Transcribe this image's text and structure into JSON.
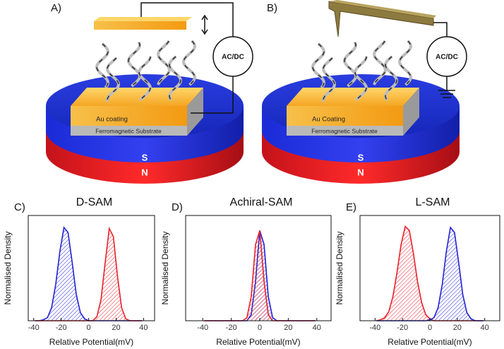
{
  "diagrams": [
    {
      "label": "A)",
      "meter": "AC/DC",
      "coating": "Au coating",
      "substrate": "Ferromagnetic Substrate",
      "top_pole": "S",
      "bottom_pole": "N"
    },
    {
      "label": "B)",
      "meter": "AC/DC",
      "coating": "Au Coating",
      "substrate": "Ferromagnetic Substrate",
      "top_pole": "S",
      "bottom_pole": "N"
    }
  ],
  "chart_data": [
    {
      "type": "area",
      "panel_label": "C)",
      "title": "D-SAM",
      "xlabel": "Relative Potential(mV)",
      "ylabel": "Normalised Density",
      "x": [
        -39,
        -36,
        -33,
        -30,
        -27,
        -24,
        -21,
        -18,
        -15,
        -12,
        -9,
        -6,
        -3,
        0,
        3,
        6,
        9,
        12,
        15,
        18,
        21,
        24,
        27,
        30,
        33,
        36,
        39
      ],
      "xlim": [
        -44,
        48
      ],
      "ylim": [
        0,
        1.05
      ],
      "xticks": [
        -40,
        -20,
        0,
        20,
        40
      ],
      "series": [
        {
          "color": "#2222d4",
          "values": [
            0,
            0,
            0.01,
            0.03,
            0.13,
            0.36,
            0.69,
            0.93,
            0.88,
            0.58,
            0.26,
            0.08,
            0.02,
            0,
            0,
            0,
            0,
            0,
            0,
            0,
            0,
            0,
            0,
            0,
            0,
            0,
            0
          ]
        },
        {
          "color": "#e8202a",
          "values": [
            0,
            0,
            0,
            0,
            0,
            0,
            0,
            0,
            0,
            0,
            0,
            0,
            0,
            0,
            0,
            0.04,
            0.21,
            0.58,
            0.92,
            0.84,
            0.44,
            0.13,
            0.02,
            0,
            0,
            0,
            0
          ]
        }
      ]
    },
    {
      "type": "area",
      "panel_label": "D)",
      "title": "Achiral-SAM",
      "xlabel": "Relative Potential(mV)",
      "ylabel": "Normalised Density",
      "x": [
        -39,
        -36,
        -33,
        -30,
        -27,
        -24,
        -21,
        -18,
        -15,
        -12,
        -9,
        -6,
        -3,
        0,
        3,
        6,
        9,
        12,
        15,
        18,
        21,
        24,
        27,
        30,
        33,
        36,
        39
      ],
      "xlim": [
        -52,
        50
      ],
      "ylim": [
        0,
        1.05
      ],
      "xticks": [
        -40,
        -20,
        0,
        20,
        40
      ],
      "series": [
        {
          "color": "#2222d4",
          "values": [
            0,
            0,
            0,
            0,
            0,
            0,
            0,
            0,
            0,
            0,
            0,
            0.06,
            0.39,
            0.9,
            0.76,
            0.24,
            0.03,
            0,
            0,
            0,
            0,
            0,
            0,
            0,
            0,
            0,
            0
          ]
        },
        {
          "color": "#e8202a",
          "values": [
            0,
            0,
            0,
            0,
            0,
            0,
            0,
            0,
            0,
            0,
            0.03,
            0.24,
            0.76,
            0.9,
            0.39,
            0.06,
            0,
            0,
            0,
            0,
            0,
            0,
            0,
            0,
            0,
            0,
            0
          ]
        }
      ]
    },
    {
      "type": "area",
      "panel_label": "E)",
      "title": "L-SAM",
      "xlabel": "Relative Potential(mV)",
      "ylabel": "Normalised Density",
      "x": [
        -39,
        -36,
        -33,
        -30,
        -27,
        -24,
        -21,
        -18,
        -15,
        -12,
        -9,
        -6,
        -3,
        0,
        3,
        6,
        9,
        12,
        15,
        18,
        21,
        24,
        27,
        30,
        33,
        36,
        39
      ],
      "xlim": [
        -51,
        51
      ],
      "ylim": [
        0,
        1.05
      ],
      "xticks": [
        -40,
        -20,
        0,
        20,
        40
      ],
      "series": [
        {
          "color": "#e8202a",
          "values": [
            0,
            0.01,
            0.03,
            0.09,
            0.24,
            0.48,
            0.76,
            0.94,
            0.9,
            0.67,
            0.39,
            0.18,
            0.06,
            0.02,
            0,
            0,
            0,
            0,
            0,
            0,
            0,
            0,
            0,
            0,
            0,
            0,
            0
          ]
        },
        {
          "color": "#2222d4",
          "values": [
            0,
            0,
            0,
            0,
            0,
            0,
            0,
            0,
            0,
            0,
            0,
            0,
            0,
            0.01,
            0.03,
            0.13,
            0.36,
            0.69,
            0.93,
            0.88,
            0.58,
            0.26,
            0.08,
            0.02,
            0,
            0,
            0
          ]
        }
      ]
    }
  ]
}
